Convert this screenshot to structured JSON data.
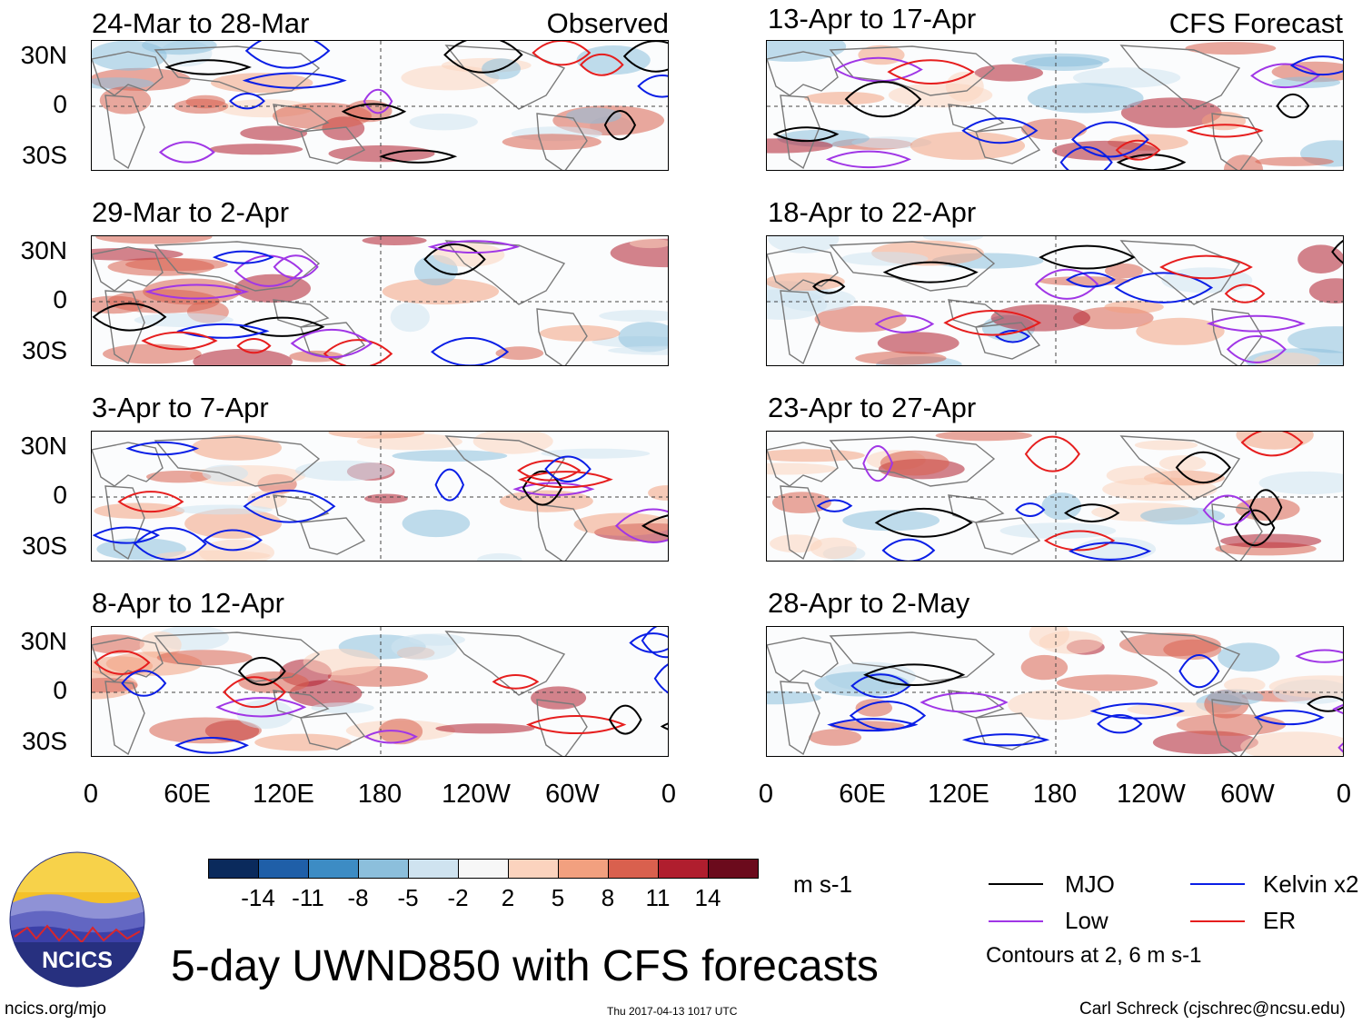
{
  "header": {
    "observed_label": "Observed",
    "forecast_label": "CFS Forecast"
  },
  "panels_observed": [
    {
      "title": "24-Mar to 28-Mar"
    },
    {
      "title": "29-Mar to 2-Apr"
    },
    {
      "title": "3-Apr to 7-Apr"
    },
    {
      "title": "8-Apr to 12-Apr"
    }
  ],
  "panels_forecast": [
    {
      "title": "13-Apr to 17-Apr"
    },
    {
      "title": "18-Apr to 22-Apr"
    },
    {
      "title": "23-Apr to 27-Apr"
    },
    {
      "title": "28-Apr to 2-May"
    }
  ],
  "axes": {
    "y_labels": [
      "30N",
      "0",
      "30S"
    ],
    "x_labels": [
      "0",
      "60E",
      "120E",
      "180",
      "120W",
      "60W",
      "0"
    ]
  },
  "colorbar": {
    "unit": "m s-1",
    "colors": [
      "#0a2a5c",
      "#1f5fa8",
      "#3d8cc4",
      "#8cbfdc",
      "#cfe3f0",
      "#f7f7f7",
      "#fbd3be",
      "#f2a07f",
      "#d9604e",
      "#b01e2e",
      "#6b0a1c"
    ],
    "labels": [
      "-14",
      "-11",
      "-8",
      "-5",
      "-2",
      "2",
      "5",
      "8",
      "11",
      "14"
    ]
  },
  "legend": {
    "items": [
      {
        "label": "MJO",
        "color": "#000000"
      },
      {
        "label": "Kelvin x2",
        "color": "#0a1ee6"
      },
      {
        "label": "Low",
        "color": "#a036e6"
      },
      {
        "label": "ER",
        "color": "#e61e1e"
      }
    ],
    "contour_note": "Contours at 2, 6 m s-1"
  },
  "footer": {
    "main_title": "5-day UWND850 with CFS forecasts",
    "logo_text": "NCICS",
    "url": "ncics.org/mjo",
    "timestamp": "Thu 2017-04-13 1017 UTC",
    "credit": "Carl Schreck (cjschrec@ncsu.edu)"
  }
}
